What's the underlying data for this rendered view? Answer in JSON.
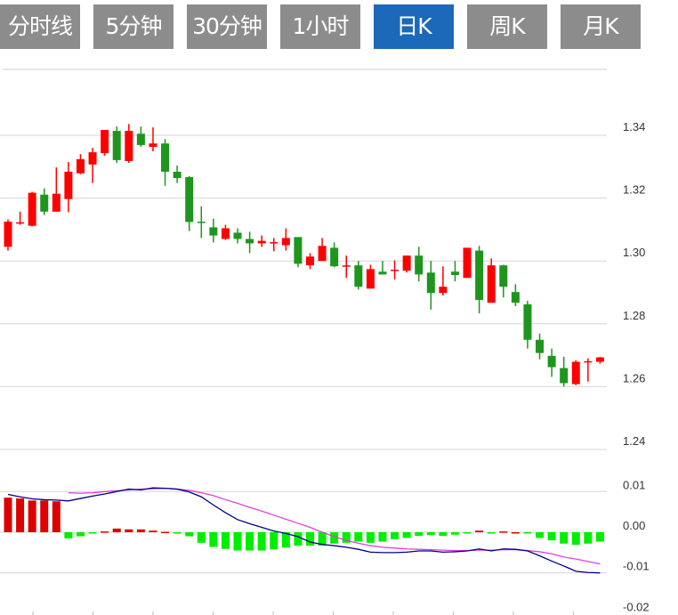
{
  "tabs": [
    {
      "label": "分时线",
      "active": false
    },
    {
      "label": "5分钟",
      "active": false
    },
    {
      "label": "30分钟",
      "active": false
    },
    {
      "label": "1小时",
      "active": false
    },
    {
      "label": "日K",
      "active": true
    },
    {
      "label": "周K",
      "active": false
    },
    {
      "label": "月K",
      "active": false
    }
  ],
  "colors": {
    "up": "#ff0000",
    "down": "#1e961e",
    "hist_up": "#dd0000",
    "hist_down": "#00ee00",
    "dif": "#00008b",
    "dea": "#e040e0",
    "active_tab": "#1c68b9",
    "tab": "#8c8c8c"
  },
  "chart_data": [
    {
      "type": "candlestick",
      "yticks": [
        "1.34",
        "1.32",
        "1.30",
        "1.28",
        "1.26",
        "1.24"
      ],
      "ylim": [
        1.24,
        1.36
      ],
      "grid": true,
      "ohlc": [
        [
          1.3045,
          1.3132,
          1.3033,
          1.3125
        ],
        [
          1.312,
          1.3157,
          1.3115,
          1.3123
        ],
        [
          1.3112,
          1.322,
          1.311,
          1.3217
        ],
        [
          1.3211,
          1.3231,
          1.3146,
          1.3157
        ],
        [
          1.3157,
          1.3298,
          1.3157,
          1.3214
        ],
        [
          1.3197,
          1.3315,
          1.3155,
          1.3284
        ],
        [
          1.3279,
          1.334,
          1.3276,
          1.3324
        ],
        [
          1.3307,
          1.336,
          1.3248,
          1.3346
        ],
        [
          1.3343,
          1.3417,
          1.3335,
          1.3417
        ],
        [
          1.3414,
          1.3428,
          1.3312,
          1.3321
        ],
        [
          1.3318,
          1.3436,
          1.3312,
          1.3414
        ],
        [
          1.3405,
          1.3428,
          1.3363,
          1.3369
        ],
        [
          1.3363,
          1.3425,
          1.3349,
          1.3374
        ],
        [
          1.3374,
          1.3388,
          1.3239,
          1.3284
        ],
        [
          1.3284,
          1.3304,
          1.3248,
          1.3264
        ],
        [
          1.3267,
          1.327,
          1.3095,
          1.3124
        ],
        [
          1.3125,
          1.3174,
          1.3073,
          1.3121
        ],
        [
          1.3107,
          1.3135,
          1.3059,
          1.3081
        ],
        [
          1.307,
          1.3115,
          1.3067,
          1.3104
        ],
        [
          1.309,
          1.3104,
          1.3056,
          1.307
        ],
        [
          1.307,
          1.3093,
          1.3025,
          1.3056
        ],
        [
          1.3056,
          1.3081,
          1.3045,
          1.3064
        ],
        [
          1.3058,
          1.3073,
          1.3031,
          1.306
        ],
        [
          1.305,
          1.3104,
          1.3033,
          1.3073
        ],
        [
          1.3076,
          1.3076,
          1.298,
          1.2991
        ],
        [
          1.2986,
          1.3025,
          1.2974,
          1.3014
        ],
        [
          1.3,
          1.3073,
          1.3,
          1.3048
        ],
        [
          1.3042,
          1.3059,
          1.298,
          1.2983
        ],
        [
          1.2983,
          1.3017,
          1.2946,
          1.2986
        ],
        [
          1.2986,
          1.3,
          1.2909,
          1.2918
        ],
        [
          1.2912,
          1.2988,
          1.2912,
          1.2974
        ],
        [
          1.2966,
          1.3,
          1.2957,
          1.2957
        ],
        [
          1.2969,
          1.3002,
          1.2941,
          1.2972
        ],
        [
          1.2969,
          1.3017,
          1.2963,
          1.3017
        ],
        [
          1.3017,
          1.3045,
          1.2935,
          1.2957
        ],
        [
          1.2963,
          1.3,
          1.2845,
          1.2898
        ],
        [
          1.2898,
          1.2983,
          1.289,
          1.2918
        ],
        [
          1.2966,
          1.3,
          1.2935,
          1.2955
        ],
        [
          1.2946,
          1.3042,
          1.2946,
          1.3042
        ],
        [
          1.3033,
          1.3048,
          1.2833,
          1.2876
        ],
        [
          1.2867,
          1.3008,
          1.2867,
          1.2986
        ],
        [
          1.2986,
          1.2988,
          1.2884,
          1.2918
        ],
        [
          1.2901,
          1.2926,
          1.2856,
          1.2867
        ],
        [
          1.2862,
          1.2873,
          1.2721,
          1.2749
        ],
        [
          1.2749,
          1.2769,
          1.2687,
          1.2707
        ],
        [
          1.2698,
          1.2721,
          1.2631,
          1.2662
        ],
        [
          1.2659,
          1.2695,
          1.26,
          1.2611
        ],
        [
          1.2608,
          1.2684,
          1.2605,
          1.2679
        ],
        [
          1.2679,
          1.269,
          1.2616,
          1.2681
        ],
        [
          1.2679,
          1.2695,
          1.2673,
          1.2693
        ]
      ]
    },
    {
      "type": "bar+line",
      "yticks": [
        "0.01",
        "0.00",
        "-0.01",
        "-0.02"
      ],
      "ylim": [
        -0.02,
        0.01
      ],
      "grid": true,
      "histogram": [
        0.0085,
        0.0083,
        0.0078,
        0.0078,
        0.0076,
        -0.0015,
        -0.001,
        -0.0003,
        0.0002,
        0.0009,
        0.0007,
        0.0007,
        0.0004,
        0.0001,
        -0.0003,
        -0.001,
        -0.0026,
        -0.0036,
        -0.0041,
        -0.0045,
        -0.0045,
        -0.0045,
        -0.0042,
        -0.0038,
        -0.0033,
        -0.0033,
        -0.0033,
        -0.0028,
        -0.0026,
        -0.0023,
        -0.0026,
        -0.0023,
        -0.0017,
        -0.0014,
        -0.0009,
        -0.0007,
        -0.0009,
        -0.0006,
        -0.0003,
        0.0004,
        -0.0002,
        0.0002,
        0.0,
        -0.0002,
        -0.0014,
        -0.002,
        -0.0028,
        -0.0031,
        -0.0028,
        -0.0023
      ],
      "dif": [
        0.0093,
        0.0087,
        0.0082,
        0.008,
        0.0079,
        0.0077,
        0.0083,
        0.0089,
        0.0094,
        0.01,
        0.0106,
        0.0104,
        0.0109,
        0.0108,
        0.0106,
        0.0099,
        0.0087,
        0.0067,
        0.0048,
        0.0031,
        0.0021,
        0.0012,
        0.0003,
        -0.0003,
        -0.0011,
        -0.0024,
        -0.003,
        -0.0033,
        -0.0037,
        -0.0042,
        -0.0049,
        -0.005,
        -0.005,
        -0.0049,
        -0.0046,
        -0.0046,
        -0.0049,
        -0.0048,
        -0.0046,
        -0.0041,
        -0.0046,
        -0.0041,
        -0.0042,
        -0.0046,
        -0.0058,
        -0.0071,
        -0.0083,
        -0.0096,
        -0.0099,
        -0.01
      ],
      "dea": [
        null,
        null,
        null,
        null,
        null,
        0.0097,
        0.0096,
        0.0097,
        0.01,
        0.0102,
        0.0104,
        0.0106,
        0.0107,
        0.0108,
        0.0106,
        0.0103,
        0.0097,
        0.009,
        0.008,
        0.0071,
        0.0061,
        0.0052,
        0.0042,
        0.0032,
        0.0022,
        0.0012,
        0.0,
        -0.0011,
        -0.002,
        -0.0027,
        -0.0033,
        -0.0037,
        -0.0039,
        -0.0041,
        -0.0042,
        -0.0043,
        -0.0044,
        -0.0045,
        -0.0045,
        -0.0044,
        -0.0044,
        -0.0043,
        -0.0043,
        -0.0045,
        -0.0048,
        -0.0053,
        -0.0061,
        -0.0066,
        -0.0072,
        -0.0078
      ]
    }
  ]
}
